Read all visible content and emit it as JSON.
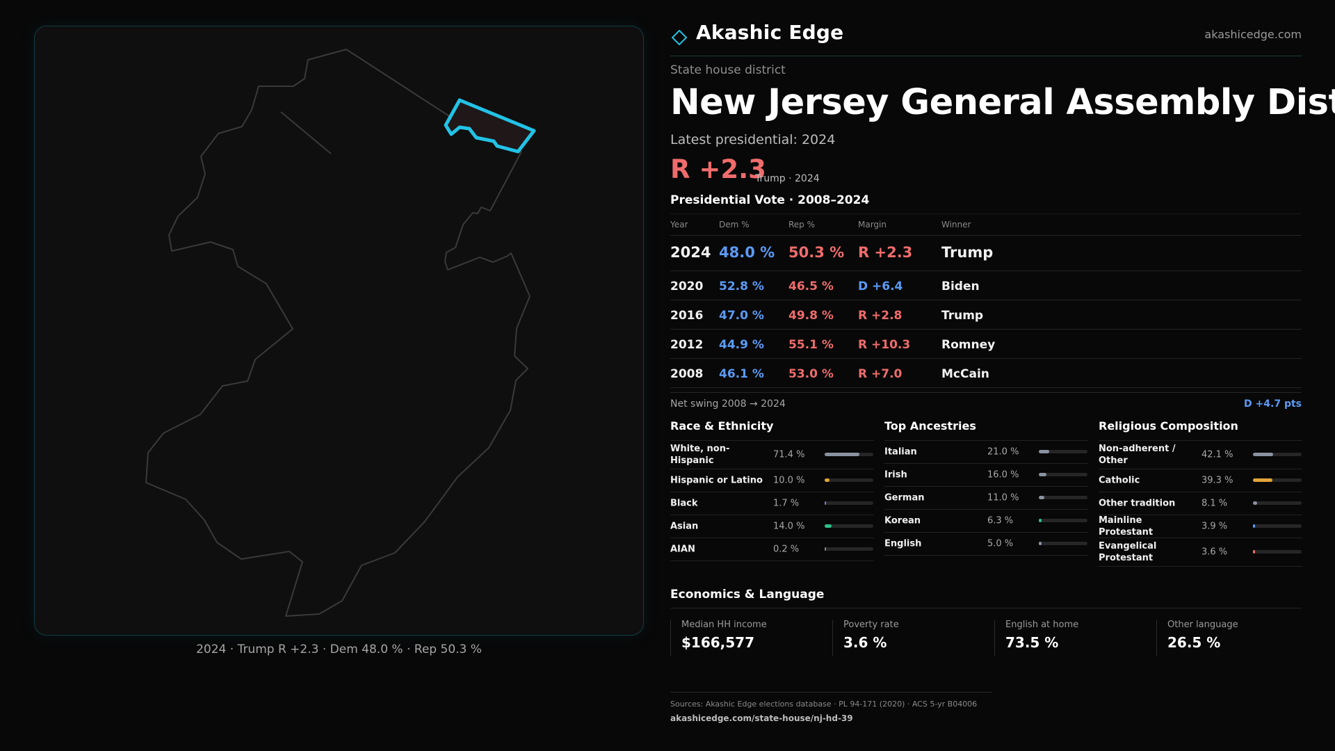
{
  "brand": {
    "name": "Akashic Edge",
    "url": "akashicedge.com",
    "accent": "#22c3e6"
  },
  "header": {
    "subtitle": "State house district",
    "title": "New Jersey General Assembly District",
    "latest_label": "Latest presidential: 2024",
    "latest_margin": "R +2.3",
    "latest_sub": "Trump · 2024"
  },
  "map": {
    "caption": "2024 · Trump R +2.3 · Dem 48.0 % · Rep 50.3 %",
    "highlight_color": "#22c3e6"
  },
  "presidential": {
    "title": "Presidential Vote · 2008–2024",
    "headers": {
      "year": "Year",
      "dem": "Dem %",
      "rep": "Rep %",
      "margin": "Margin",
      "winner": "Winner"
    },
    "rows": [
      {
        "year": "2024",
        "dem": "48.0 %",
        "rep": "50.3 %",
        "margin": "R +2.3",
        "winner": "Trump"
      },
      {
        "year": "2020",
        "dem": "52.8 %",
        "rep": "46.5 %",
        "margin": "D +6.4",
        "winner": "Biden"
      },
      {
        "year": "2016",
        "dem": "47.0 %",
        "rep": "49.8 %",
        "margin": "R +2.8",
        "winner": "Trump"
      },
      {
        "year": "2012",
        "dem": "44.9 %",
        "rep": "55.1 %",
        "margin": "R +10.3",
        "winner": "Romney"
      },
      {
        "year": "2008",
        "dem": "46.1 %",
        "rep": "53.0 %",
        "margin": "R +7.0",
        "winner": "McCain"
      }
    ],
    "swing_label": "Net swing 2008 → 2024",
    "swing_value": "D +4.7 pts",
    "colors": {
      "dem": "#5b9bf6",
      "rep": "#f06c6c"
    }
  },
  "race": {
    "title": "Race & Ethnicity",
    "items": [
      {
        "label": "White, non-Hispanic",
        "value": "71.4 %",
        "pct": 71.4,
        "color": "#8a93a2"
      },
      {
        "label": "Hispanic or Latino",
        "value": "10.0 %",
        "pct": 10.0,
        "color": "#e0a43a"
      },
      {
        "label": "Black",
        "value": "1.7 %",
        "pct": 1.7,
        "color": "#8b6fd6"
      },
      {
        "label": "Asian",
        "value": "14.0 %",
        "pct": 14.0,
        "color": "#2fbf8a"
      },
      {
        "label": "AIAN",
        "value": "0.2 %",
        "pct": 0.2,
        "color": "#888888"
      }
    ]
  },
  "ancestry": {
    "title": "Top Ancestries",
    "items": [
      {
        "label": "Italian",
        "value": "21.0 %",
        "pct": 21.0,
        "color": "#8a93a2"
      },
      {
        "label": "Irish",
        "value": "16.0 %",
        "pct": 16.0,
        "color": "#8a93a2"
      },
      {
        "label": "German",
        "value": "11.0 %",
        "pct": 11.0,
        "color": "#8a93a2"
      },
      {
        "label": "Korean",
        "value": "6.3 %",
        "pct": 6.3,
        "color": "#2fbf8a"
      },
      {
        "label": "English",
        "value": "5.0 %",
        "pct": 5.0,
        "color": "#8a93a2"
      }
    ]
  },
  "religion": {
    "title": "Religious Composition",
    "items": [
      {
        "label": "Non-adherent / Other",
        "value": "42.1 %",
        "pct": 42.1,
        "color": "#8a93a2"
      },
      {
        "label": "Catholic",
        "value": "39.3 %",
        "pct": 39.3,
        "color": "#e0a43a"
      },
      {
        "label": "Other tradition",
        "value": "8.1 %",
        "pct": 8.1,
        "color": "#8a93a2"
      },
      {
        "label": "Mainline Protestant",
        "value": "3.9 %",
        "pct": 3.9,
        "color": "#5b9bf6"
      },
      {
        "label": "Evangelical Protestant",
        "value": "3.6 %",
        "pct": 3.6,
        "color": "#f06c6c"
      }
    ]
  },
  "economics": {
    "title": "Economics & Language",
    "cells": [
      {
        "label": "Median HH income",
        "value": "$166,577"
      },
      {
        "label": "Poverty rate",
        "value": "3.6 %"
      },
      {
        "label": "English at home",
        "value": "73.5 %"
      },
      {
        "label": "Other language",
        "value": "26.5 %"
      }
    ]
  },
  "footer": {
    "sources": "Sources: Akashic Edge elections database · PL 94-171 (2020) · ACS 5-yr B04006",
    "link": "akashicedge.com/state-house/nj-hd-39"
  }
}
